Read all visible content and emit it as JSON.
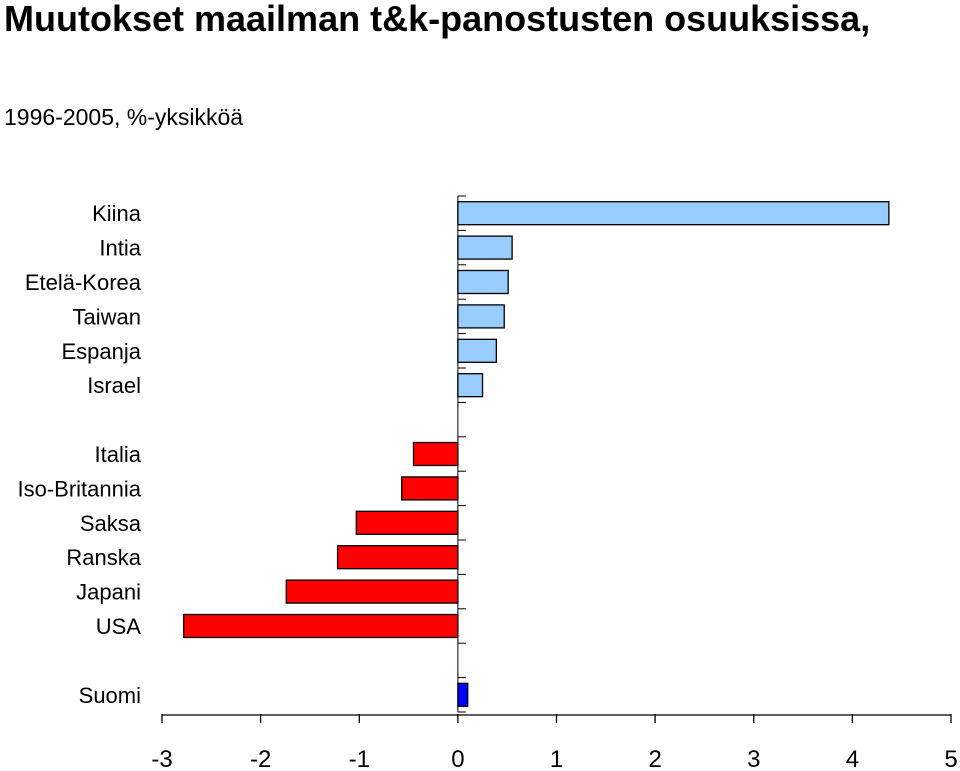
{
  "header": {
    "title": "Muutokset maailman t&k-panostusten osuuksissa,",
    "subtitle": "1996-2005, %-yksikköä"
  },
  "chart_data": {
    "type": "bar",
    "orientation": "horizontal",
    "title": "Muutokset maailman t&k-panostusten osuuksissa,",
    "subtitle": "1996-2005, %-yksikköä",
    "xlabel": "",
    "ylabel": "",
    "xlim": [
      -3,
      5
    ],
    "xticks": [
      -3,
      -2,
      -1,
      0,
      1,
      2,
      3,
      4,
      5
    ],
    "grid": false,
    "legend": "none",
    "colors": {
      "gain": "#99ccff",
      "loss": "#ff0000",
      "finland": "#0000ff",
      "outline": "#000000"
    },
    "groups": [
      {
        "color": "#99ccff",
        "bars": [
          {
            "label": "Kiina",
            "value": 4.37
          },
          {
            "label": "Intia",
            "value": 0.55
          },
          {
            "label": "Etelä-Korea",
            "value": 0.51
          },
          {
            "label": "Taiwan",
            "value": 0.47
          },
          {
            "label": "Espanja",
            "value": 0.39
          },
          {
            "label": "Israel",
            "value": 0.25
          }
        ]
      },
      {
        "color": "#ff0000",
        "bars": [
          {
            "label": "Italia",
            "value": -0.45
          },
          {
            "label": "Iso-Britannia",
            "value": -0.57
          },
          {
            "label": "Saksa",
            "value": -1.03
          },
          {
            "label": "Ranska",
            "value": -1.22
          },
          {
            "label": "Japani",
            "value": -1.74
          },
          {
            "label": "USA",
            "value": -2.78
          }
        ]
      },
      {
        "color": "#0000ff",
        "bars": [
          {
            "label": "Suomi",
            "value": 0.1
          }
        ]
      }
    ]
  }
}
